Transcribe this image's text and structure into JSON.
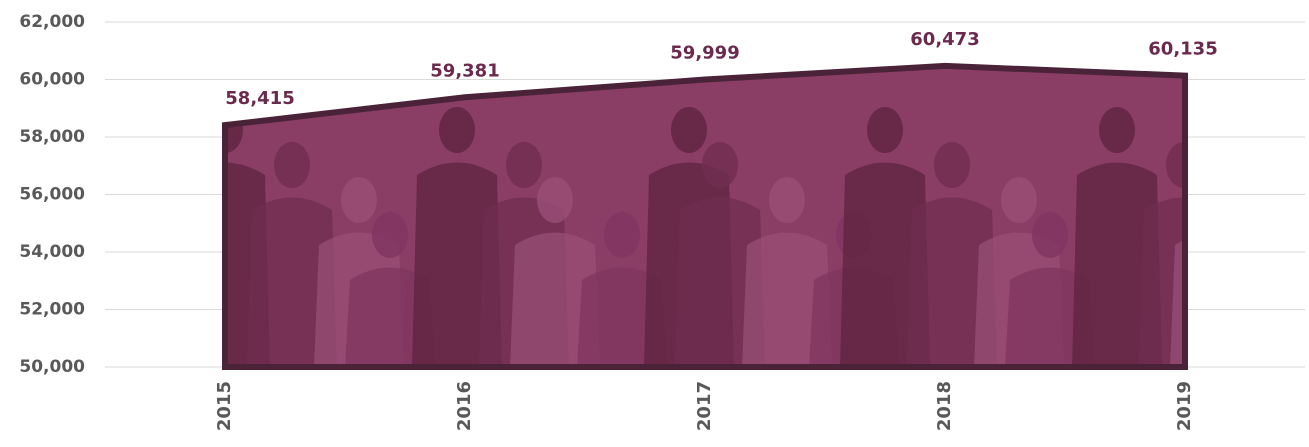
{
  "chart_data": {
    "type": "area",
    "categories": [
      "2015",
      "2016",
      "2017",
      "2018",
      "2019"
    ],
    "values": [
      58415,
      59381,
      59999,
      60473,
      60135
    ],
    "value_labels": [
      "58,415",
      "59,381",
      "59,999",
      "60,473",
      "60,135"
    ],
    "color": "#8a3d65",
    "line_color": "#4a2339",
    "ylim": [
      50000,
      62000
    ],
    "yticks": [
      {
        "value": 50000,
        "label": "50,000"
      },
      {
        "value": 52000,
        "label": "52,000"
      },
      {
        "value": 54000,
        "label": "54,000"
      },
      {
        "value": 56000,
        "label": "56,000"
      },
      {
        "value": 58000,
        "label": "58,000"
      },
      {
        "value": 60000,
        "label": "60,000"
      },
      {
        "value": 62000,
        "label": "62,000"
      }
    ],
    "grid": true
  }
}
